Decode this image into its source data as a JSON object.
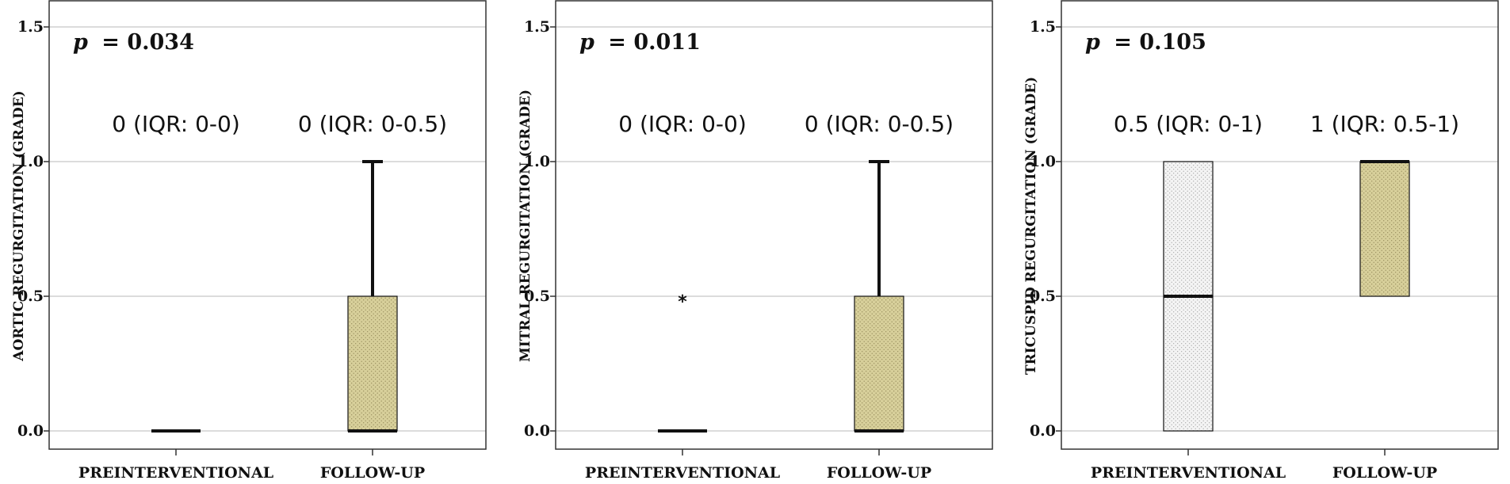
{
  "colors": {
    "preinterventional_fill": "#f4f4f4",
    "follow_up_fill": "#d7cf9a",
    "grid": "#c8c8c8",
    "frame": "#333333",
    "ink": "#111111"
  },
  "chart_data": [
    {
      "type": "box",
      "ylabel": "AORTIC REGURGITATION (GRADE)",
      "p_prefix": "p",
      "p_value": "= 0.034",
      "ylim": [
        -0.08,
        1.6
      ],
      "yticks": [
        0.0,
        0.5,
        1.0,
        1.5
      ],
      "ytick_labels": [
        "0.0",
        "0.5",
        "1.0",
        "1.5"
      ],
      "grid": true,
      "categories": [
        "PREINTERVENTIONAL",
        "FOLLOW-UP"
      ],
      "annotations": [
        "0 (IQR: 0-0)",
        "0 (IQR: 0-0.5)"
      ],
      "boxes": [
        {
          "q1": 0,
          "median": 0,
          "q3": 0,
          "whisker_low": 0,
          "whisker_high": 0,
          "outliers": []
        },
        {
          "q1": 0,
          "median": 0,
          "q3": 0.5,
          "whisker_low": 0,
          "whisker_high": 1.0,
          "outliers": []
        }
      ]
    },
    {
      "type": "box",
      "ylabel": "MITRAL REGURGITATION (GRADE)",
      "p_prefix": "p",
      "p_value": "= 0.011",
      "ylim": [
        -0.08,
        1.6
      ],
      "yticks": [
        0.0,
        0.5,
        1.0,
        1.5
      ],
      "ytick_labels": [
        "0.0",
        "0.5",
        "1.0",
        "1.5"
      ],
      "grid": true,
      "categories": [
        "PREINTERVENTIONAL",
        "FOLLOW-UP"
      ],
      "annotations": [
        "0 (IQR: 0-0)",
        "0 (IQR: 0-0.5)"
      ],
      "boxes": [
        {
          "q1": 0,
          "median": 0,
          "q3": 0,
          "whisker_low": 0,
          "whisker_high": 0,
          "outliers": [
            0.5
          ]
        },
        {
          "q1": 0,
          "median": 0,
          "q3": 0.5,
          "whisker_low": 0,
          "whisker_high": 1.0,
          "outliers": []
        }
      ]
    },
    {
      "type": "box",
      "ylabel": "TRICUSPID REGURGITATION (GRADE)",
      "p_prefix": "p",
      "p_value": "= 0.105",
      "ylim": [
        -0.08,
        1.6
      ],
      "yticks": [
        0.0,
        0.5,
        1.0,
        1.5
      ],
      "ytick_labels": [
        "0.0",
        "0.5",
        "1.0",
        "1.5"
      ],
      "grid": true,
      "categories": [
        "PREINTERVENTIONAL",
        "FOLLOW-UP"
      ],
      "annotations": [
        "0.5 (IQR: 0-1)",
        "1 (IQR: 0.5-1)"
      ],
      "boxes": [
        {
          "q1": 0,
          "median": 0.5,
          "q3": 1.0,
          "whisker_low": 0,
          "whisker_high": 1.0,
          "outliers": []
        },
        {
          "q1": 0.5,
          "median": 1.0,
          "q3": 1.0,
          "whisker_low": 0.5,
          "whisker_high": 1.0,
          "outliers": []
        }
      ]
    }
  ]
}
